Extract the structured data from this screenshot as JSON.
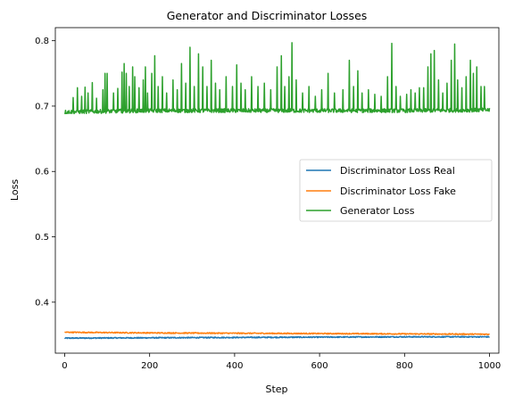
{
  "chart_data": {
    "type": "line",
    "title": "Generator and Discriminator Losses",
    "xlabel": "Step",
    "ylabel": "Loss",
    "xlim": [
      -22,
      1022
    ],
    "ylim": [
      0.322,
      0.82
    ],
    "xticks": [
      0,
      200,
      400,
      600,
      800,
      1000
    ],
    "yticks": [
      0.4,
      0.5,
      0.6,
      0.7,
      0.8
    ],
    "xtick_labels": [
      "0",
      "200",
      "400",
      "600",
      "800",
      "1000"
    ],
    "ytick_labels": [
      "0.4",
      "0.5",
      "0.6",
      "0.7",
      "0.8"
    ],
    "grid": false,
    "legend_position": "center-right",
    "series": [
      {
        "name": "Discriminator Loss Real",
        "color": "#1f77b4",
        "baseline": {
          "x": [
            0,
            200,
            400,
            600,
            800,
            1000
          ],
          "y": [
            0.345,
            0.3455,
            0.346,
            0.3465,
            0.347,
            0.347
          ]
        },
        "noise_amplitude": 0.0008
      },
      {
        "name": "Discriminator Loss Fake",
        "color": "#ff7f0e",
        "baseline": {
          "x": [
            0,
            200,
            400,
            600,
            800,
            1000
          ],
          "y": [
            0.354,
            0.353,
            0.3525,
            0.352,
            0.3515,
            0.351
          ]
        },
        "noise_amplitude": 0.0008
      },
      {
        "name": "Generator Loss",
        "color": "#2ca02c",
        "baseline": {
          "x": [
            0,
            200,
            400,
            600,
            800,
            1000
          ],
          "y": [
            0.691,
            0.693,
            0.693,
            0.693,
            0.693,
            0.694
          ]
        },
        "noise_amplitude": 0.003,
        "spikes": [
          {
            "x": 20,
            "y": 0.713
          },
          {
            "x": 30,
            "y": 0.728
          },
          {
            "x": 40,
            "y": 0.715
          },
          {
            "x": 48,
            "y": 0.729
          },
          {
            "x": 55,
            "y": 0.72
          },
          {
            "x": 65,
            "y": 0.736
          },
          {
            "x": 75,
            "y": 0.712
          },
          {
            "x": 90,
            "y": 0.725
          },
          {
            "x": 95,
            "y": 0.75
          },
          {
            "x": 100,
            "y": 0.75
          },
          {
            "x": 115,
            "y": 0.72
          },
          {
            "x": 125,
            "y": 0.727
          },
          {
            "x": 135,
            "y": 0.752
          },
          {
            "x": 140,
            "y": 0.765
          },
          {
            "x": 145,
            "y": 0.75
          },
          {
            "x": 152,
            "y": 0.73
          },
          {
            "x": 160,
            "y": 0.76
          },
          {
            "x": 165,
            "y": 0.745
          },
          {
            "x": 175,
            "y": 0.728
          },
          {
            "x": 185,
            "y": 0.74
          },
          {
            "x": 190,
            "y": 0.76
          },
          {
            "x": 195,
            "y": 0.72
          },
          {
            "x": 205,
            "y": 0.75
          },
          {
            "x": 212,
            "y": 0.777
          },
          {
            "x": 220,
            "y": 0.73
          },
          {
            "x": 230,
            "y": 0.745
          },
          {
            "x": 240,
            "y": 0.72
          },
          {
            "x": 255,
            "y": 0.74
          },
          {
            "x": 265,
            "y": 0.725
          },
          {
            "x": 275,
            "y": 0.765
          },
          {
            "x": 285,
            "y": 0.735
          },
          {
            "x": 295,
            "y": 0.79
          },
          {
            "x": 305,
            "y": 0.73
          },
          {
            "x": 315,
            "y": 0.78
          },
          {
            "x": 325,
            "y": 0.76
          },
          {
            "x": 335,
            "y": 0.73
          },
          {
            "x": 345,
            "y": 0.77
          },
          {
            "x": 355,
            "y": 0.735
          },
          {
            "x": 365,
            "y": 0.725
          },
          {
            "x": 380,
            "y": 0.745
          },
          {
            "x": 395,
            "y": 0.73
          },
          {
            "x": 405,
            "y": 0.763
          },
          {
            "x": 415,
            "y": 0.735
          },
          {
            "x": 425,
            "y": 0.725
          },
          {
            "x": 440,
            "y": 0.745
          },
          {
            "x": 455,
            "y": 0.73
          },
          {
            "x": 470,
            "y": 0.735
          },
          {
            "x": 485,
            "y": 0.725
          },
          {
            "x": 500,
            "y": 0.76
          },
          {
            "x": 510,
            "y": 0.777
          },
          {
            "x": 518,
            "y": 0.73
          },
          {
            "x": 528,
            "y": 0.745
          },
          {
            "x": 535,
            "y": 0.797
          },
          {
            "x": 545,
            "y": 0.74
          },
          {
            "x": 560,
            "y": 0.72
          },
          {
            "x": 575,
            "y": 0.73
          },
          {
            "x": 590,
            "y": 0.715
          },
          {
            "x": 605,
            "y": 0.725
          },
          {
            "x": 620,
            "y": 0.75
          },
          {
            "x": 635,
            "y": 0.72
          },
          {
            "x": 655,
            "y": 0.725
          },
          {
            "x": 670,
            "y": 0.77
          },
          {
            "x": 680,
            "y": 0.73
          },
          {
            "x": 690,
            "y": 0.754
          },
          {
            "x": 700,
            "y": 0.72
          },
          {
            "x": 715,
            "y": 0.725
          },
          {
            "x": 730,
            "y": 0.718
          },
          {
            "x": 745,
            "y": 0.715
          },
          {
            "x": 760,
            "y": 0.745
          },
          {
            "x": 770,
            "y": 0.796
          },
          {
            "x": 780,
            "y": 0.73
          },
          {
            "x": 790,
            "y": 0.715
          },
          {
            "x": 805,
            "y": 0.718
          },
          {
            "x": 815,
            "y": 0.725
          },
          {
            "x": 825,
            "y": 0.72
          },
          {
            "x": 835,
            "y": 0.728
          },
          {
            "x": 845,
            "y": 0.728
          },
          {
            "x": 855,
            "y": 0.76
          },
          {
            "x": 862,
            "y": 0.78
          },
          {
            "x": 870,
            "y": 0.785
          },
          {
            "x": 880,
            "y": 0.74
          },
          {
            "x": 890,
            "y": 0.72
          },
          {
            "x": 900,
            "y": 0.735
          },
          {
            "x": 910,
            "y": 0.77
          },
          {
            "x": 918,
            "y": 0.795
          },
          {
            "x": 925,
            "y": 0.74
          },
          {
            "x": 935,
            "y": 0.728
          },
          {
            "x": 945,
            "y": 0.745
          },
          {
            "x": 955,
            "y": 0.77
          },
          {
            "x": 962,
            "y": 0.75
          },
          {
            "x": 970,
            "y": 0.76
          },
          {
            "x": 980,
            "y": 0.73
          },
          {
            "x": 988,
            "y": 0.73
          }
        ]
      }
    ]
  }
}
